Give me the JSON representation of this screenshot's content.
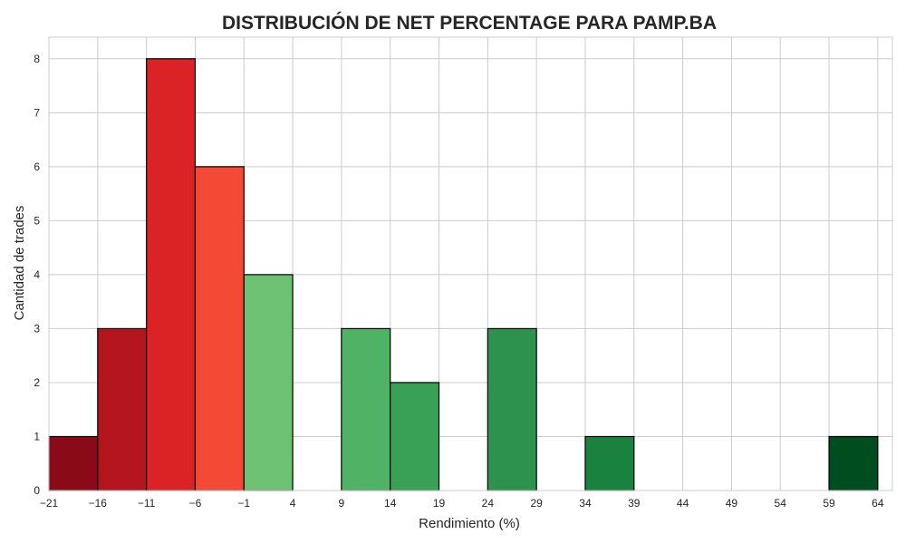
{
  "chart_data": {
    "type": "bar",
    "title": "DISTRIBUCIÓN DE NET PERCENTAGE PARA PAMP.BA",
    "xlabel": "Rendimiento (%)",
    "ylabel": "Cantidad de trades",
    "bin_edges": [
      -21,
      -16,
      -11,
      -6,
      -1,
      4,
      9,
      14,
      19,
      24,
      29,
      34,
      39,
      44,
      49,
      54,
      59,
      64
    ],
    "values": [
      1,
      3,
      8,
      6,
      4,
      0,
      3,
      2,
      0,
      3,
      0,
      1,
      0,
      0,
      0,
      0,
      1
    ],
    "colors": [
      "#8b0a17",
      "#b4141c",
      "#db2224",
      "#f24a35",
      "#6cc173",
      "#000000",
      "#4fb264",
      "#39a156",
      "#000000",
      "#2c924d",
      "#000000",
      "#19823f",
      "#000000",
      "#000000",
      "#000000",
      "#000000",
      "#004e20"
    ],
    "xticks": [
      "−21",
      "−16",
      "−11",
      "−6",
      "−1",
      "4",
      "9",
      "14",
      "19",
      "24",
      "29",
      "34",
      "39",
      "44",
      "49",
      "54",
      "59",
      "64"
    ],
    "yticks": [
      "0",
      "1",
      "2",
      "3",
      "4",
      "5",
      "6",
      "7",
      "8"
    ],
    "xlim": [
      -21,
      65.5
    ],
    "ylim": [
      0,
      8.4
    ],
    "grid": true,
    "legend": "none"
  }
}
